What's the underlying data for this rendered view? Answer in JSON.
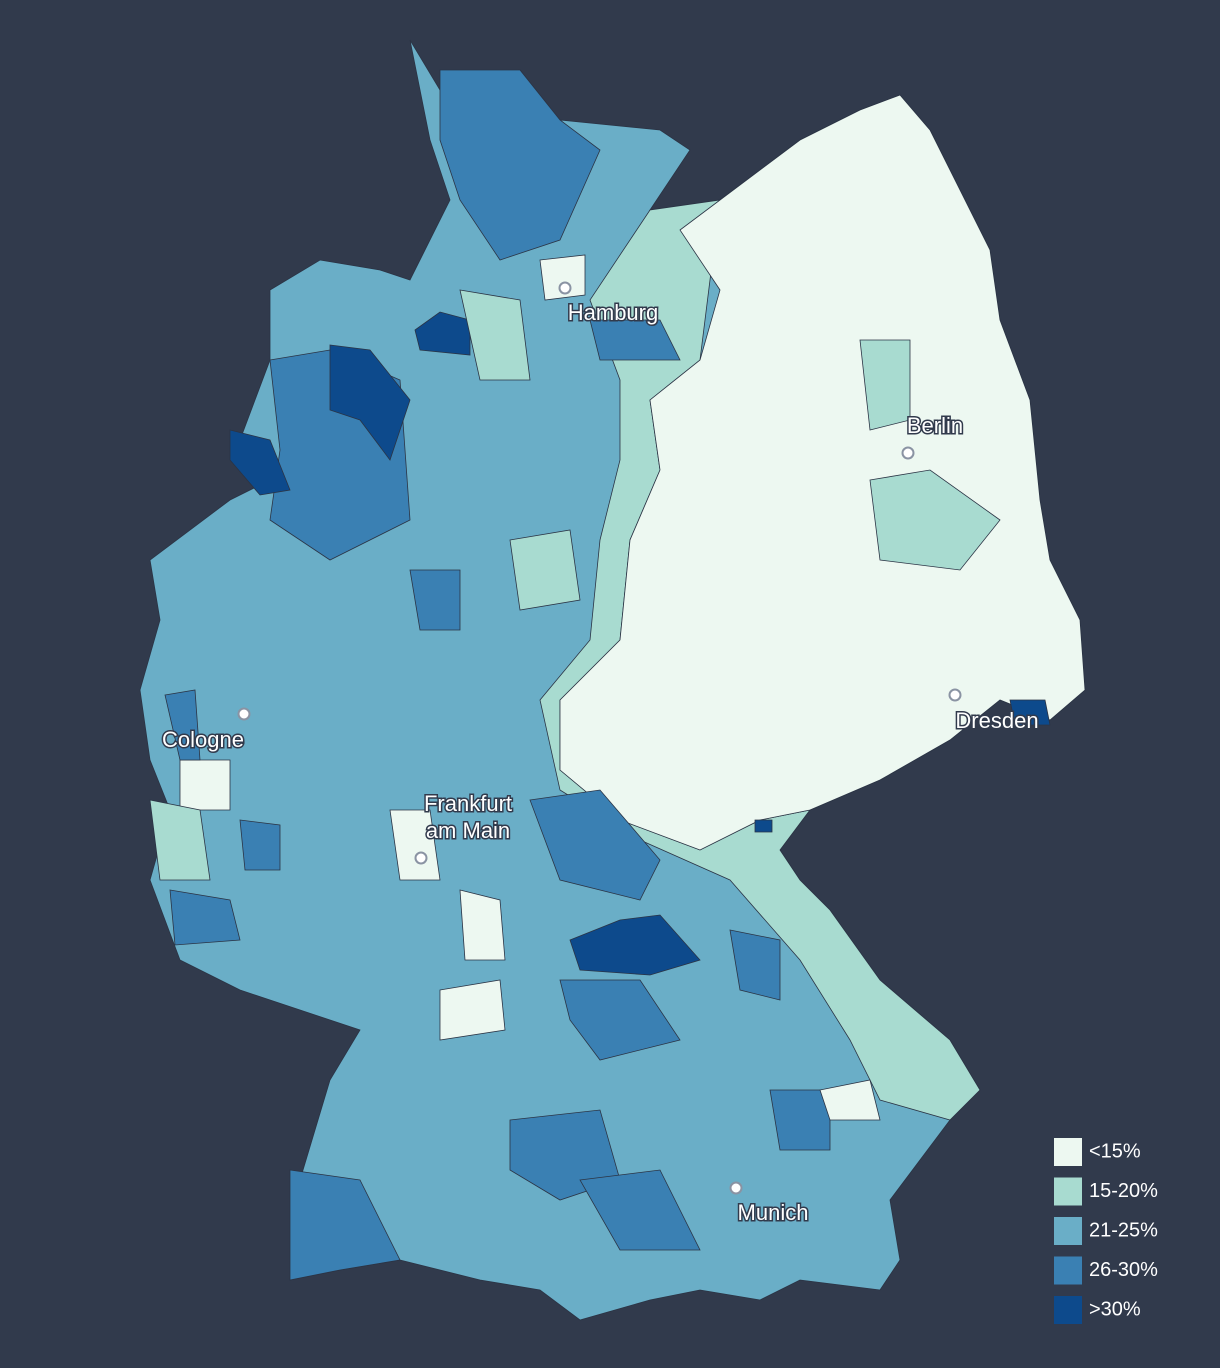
{
  "map": {
    "cities": [
      {
        "name": [
          "Hamburg"
        ]
      },
      {
        "name": [
          "Berlin"
        ]
      },
      {
        "name": [
          "Dresden"
        ]
      },
      {
        "name": [
          "Cologne"
        ]
      },
      {
        "name": [
          "Frankfurt",
          "am Main"
        ]
      },
      {
        "name": [
          "Munich"
        ]
      }
    ],
    "legend": [
      {
        "label": "<15%",
        "color": "#edf8f1"
      },
      {
        "label": "15-20%",
        "color": "#a8dbd0"
      },
      {
        "label": "21-25%",
        "color": "#6aaec7"
      },
      {
        "label": "26-30%",
        "color": "#3a80b3"
      },
      {
        "label": ">30%",
        "color": "#0d4a8c"
      }
    ]
  }
}
